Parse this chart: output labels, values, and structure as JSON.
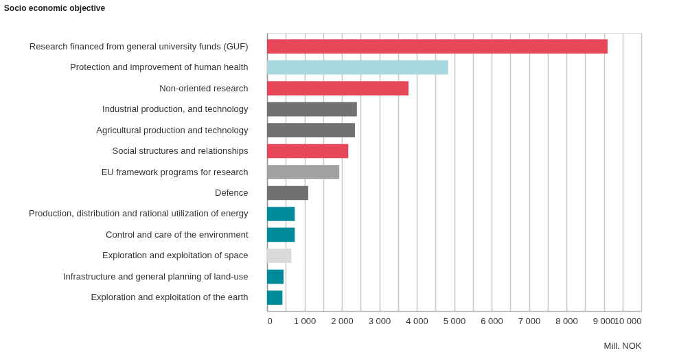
{
  "chart_data": {
    "type": "bar",
    "orientation": "horizontal",
    "ylabel": "Socio economic objective",
    "xlabel": "Mill. NOK",
    "categories": [
      "Research financed from general university funds (GUF)",
      "Protection and improvement of human health",
      "Non-oriented research",
      "Industrial production, and technology",
      "Agricultural production and technology",
      "Social structures and relationships",
      "EU framework programs for research",
      "Defence",
      "Production, distribution and rational utilization of energy",
      "Control and care of the environment",
      "Exploration and exploitation of space",
      "Infrastructure and general planning of land-use",
      "Exploration and exploitation of the earth"
    ],
    "values": [
      9100,
      4840,
      3780,
      2400,
      2350,
      2170,
      1930,
      1100,
      740,
      740,
      650,
      440,
      410
    ],
    "colors": [
      "#e8475a",
      "#a8d8e0",
      "#e8475a",
      "#717174",
      "#717174",
      "#e8475a",
      "#a0a1a3",
      "#717174",
      "#008b9b",
      "#008b9b",
      "#d8d9db",
      "#008b9b",
      "#008b9b"
    ],
    "xlim": [
      0,
      10000
    ],
    "xticks": [
      0,
      {
        "value": 500,
        "label": null
      },
      {
        "value": 1000,
        "label": "1 000"
      },
      {
        "value": 1500,
        "label": null
      },
      {
        "value": 2000,
        "label": "2 000"
      },
      {
        "value": 2500,
        "label": null
      },
      {
        "value": 3000,
        "label": "3 000"
      },
      {
        "value": 3500,
        "label": null
      },
      {
        "value": 4000,
        "label": "4 000"
      },
      {
        "value": 4500,
        "label": null
      },
      {
        "value": 5000,
        "label": "5 000"
      },
      {
        "value": 5500,
        "label": null
      },
      {
        "value": 6000,
        "label": "6 000"
      },
      {
        "value": 6500,
        "label": null
      },
      {
        "value": 7000,
        "label": "7 000"
      },
      {
        "value": 7500,
        "label": null
      },
      {
        "value": 8000,
        "label": "8 000"
      },
      {
        "value": 8500,
        "label": null
      },
      {
        "value": 9000,
        "label": "9 000"
      },
      {
        "value": 9500,
        "label": null
      },
      {
        "value": 10000,
        "label": "10 000"
      }
    ],
    "grid": "x"
  }
}
